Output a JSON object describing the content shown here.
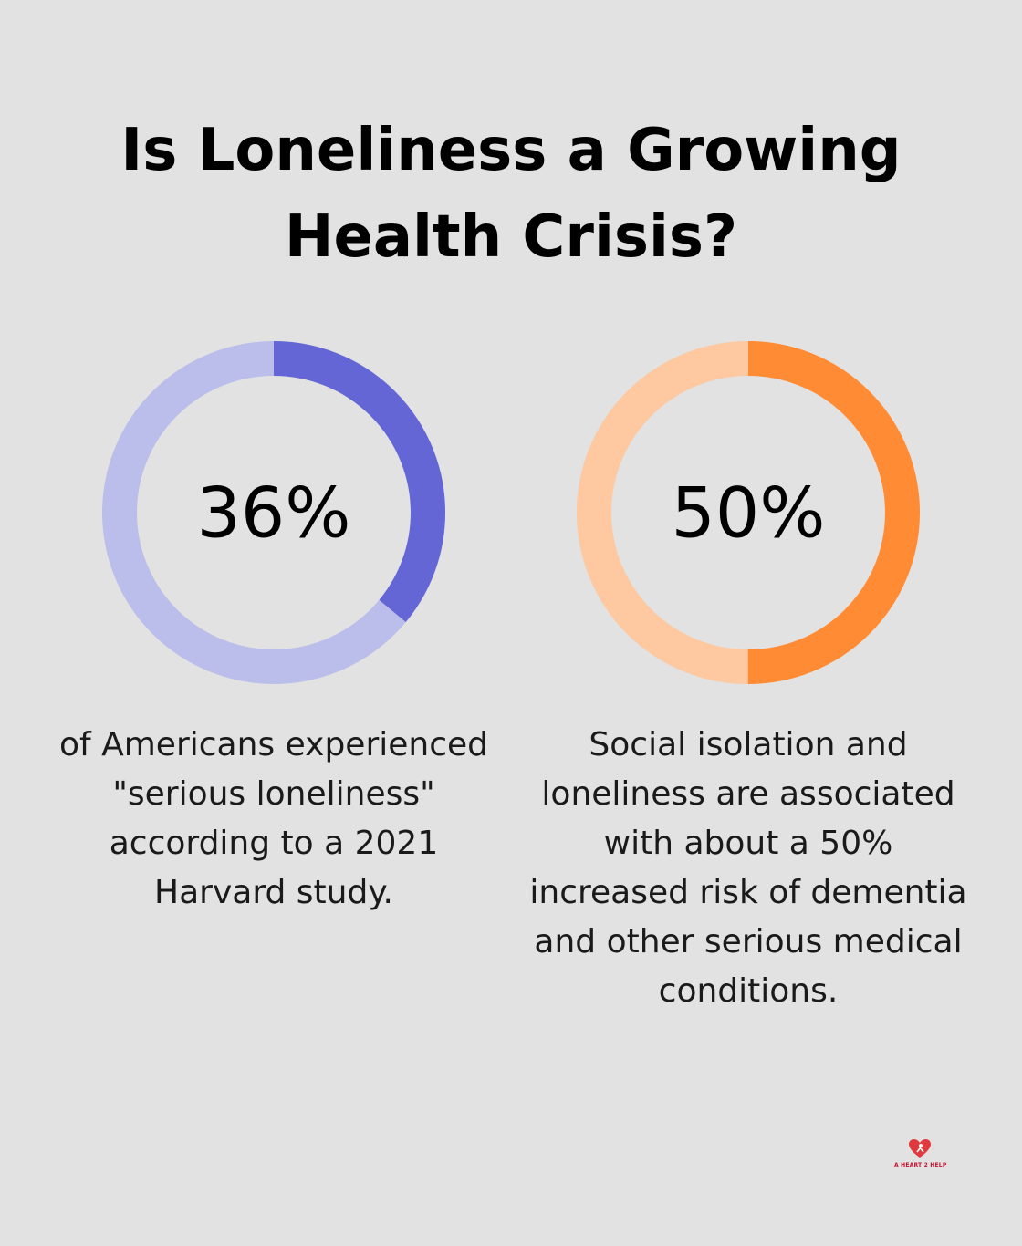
{
  "title": "Is Loneliness a Growing Health Crisis?",
  "chart_data": [
    {
      "type": "pie",
      "variant": "donut",
      "value": 36,
      "label": "36%",
      "description": "of Americans experienced \"serious loneliness\" according to a 2021 Harvard study.",
      "colors": {
        "filled": "#6366d4",
        "track": "#bbbdea"
      }
    },
    {
      "type": "pie",
      "variant": "donut",
      "value": 50,
      "label": "50%",
      "description": "Social isolation and loneliness are associated with about a 50% increased risk of dementia and other serious medical conditions.",
      "colors": {
        "filled": "#ff8b35",
        "track": "#fec8a0"
      }
    }
  ],
  "logo": {
    "text": "A HEART 2 HELP",
    "icon": "heart-logo-icon",
    "color": "#c8102e"
  }
}
